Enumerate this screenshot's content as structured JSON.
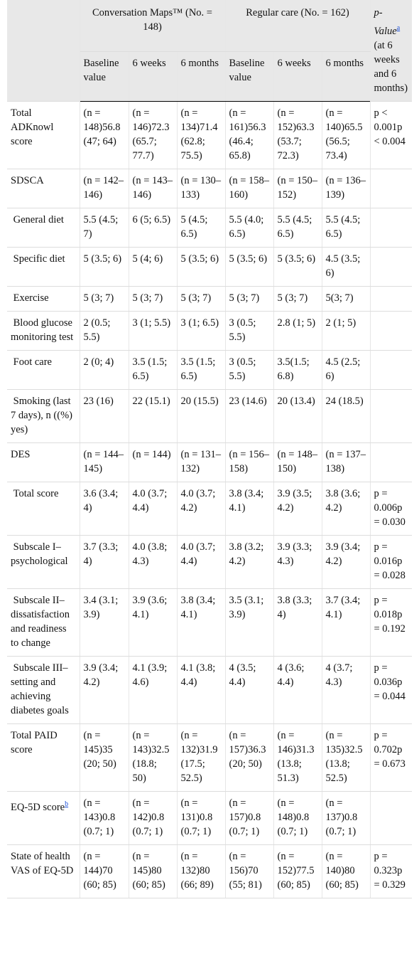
{
  "table": {
    "header": {
      "group_1": "Conversation Maps™ (No. = 148)",
      "group_2": "Regular care (No. = 162)",
      "p_col": {
        "text": "p-Value",
        "sup": "a",
        "rest": " (at 6 weeks and 6 months)"
      },
      "sub": [
        "Baseline value",
        "6 weeks",
        "6 months",
        "Baseline value",
        "6 weeks",
        "6 months"
      ]
    },
    "rows": [
      {
        "label": "Total ADKnowl score",
        "cells": [
          "(n = 148)56.8 (47; 64)",
          "(n = 146)72.3 (65.7; 77.7)",
          "(n = 134)71.4 (62.8; 75.5)",
          "(n = 161)56.3 (46.4; 65.8)",
          "(n = 152)63.3 (53.7; 72.3)",
          "(n = 140)65.5 (56.5; 73.4)"
        ],
        "p": "p < 0.001p < 0.004"
      },
      {
        "label": "SDSCA",
        "cells": [
          "(n = 142–146)",
          "(n = 143–146)",
          "(n = 130–133)",
          "(n = 158–160)",
          "(n = 150–152)",
          "(n = 136–139)"
        ]
      },
      {
        "label": " General diet",
        "cells": [
          "5.5 (4.5; 7)",
          "6 (5; 6.5)",
          "5 (4.5; 6.5)",
          "5.5 (4.0; 6.5)",
          "5.5 (4.5; 6.5)",
          "5.5 (4.5; 6.5)"
        ]
      },
      {
        "label": " Specific diet",
        "cells": [
          "5 (3.5; 6)",
          "5 (4; 6)",
          "5 (3.5; 6)",
          "5 (3.5; 6)",
          "5 (3.5; 6)",
          "4.5 (3.5; 6)"
        ]
      },
      {
        "label": " Exercise",
        "cells": [
          "5 (3; 7)",
          "5 (3; 7)",
          "5 (3; 7)",
          "5 (3; 7)",
          "5 (3; 7)",
          "5(3; 7)"
        ]
      },
      {
        "label": " Blood glucose monitoring test",
        "cells": [
          "2 (0.5; 5.5)",
          "3 (1; 5.5)",
          "3 (1; 6.5)",
          "3 (0.5; 5.5)",
          "2.8 (1; 5)",
          "2 (1; 5)"
        ]
      },
      {
        "label": " Foot care",
        "cells": [
          "2 (0; 4)",
          "3.5 (1.5; 6.5)",
          "3.5 (1.5; 6.5)",
          "3 (0.5; 5.5)",
          "3.5(1.5; 6.8)",
          "4.5 (2.5; 6)"
        ]
      },
      {
        "label": " Smoking (last 7 days), n ((%) yes)",
        "cells": [
          "23 (16)",
          "22 (15.1)",
          "20 (15.5)",
          "23 (14.6)",
          "20 (13.4)",
          "24 (18.5)"
        ]
      },
      {
        "label": "DES",
        "cells": [
          "(n = 144–145)",
          "(n = 144)",
          "(n = 131–132)",
          "(n = 156–158)",
          "(n = 148–150)",
          "(n = 137–138)"
        ]
      },
      {
        "label": " Total score",
        "cells": [
          "3.6 (3.4; 4)",
          "4.0 (3.7; 4.4)",
          "4.0 (3.7; 4.2)",
          "3.8 (3.4; 4.1)",
          "3.9 (3.5; 4.2)",
          "3.8 (3.6; 4.2)"
        ],
        "p": "p = 0.006p = 0.030"
      },
      {
        "label": " Subscale I–psychological",
        "cells": [
          "3.7 (3.3; 4)",
          "4.0 (3.8; 4.3)",
          "4.0 (3.7; 4.4)",
          "3.8 (3.2; 4.2)",
          "3.9 (3.3; 4.3)",
          "3.9 (3.4; 4.2)"
        ],
        "p": "p = 0.016p = 0.028"
      },
      {
        "label": " Subscale II–dissatisfaction and readiness to change",
        "cells": [
          "3.4 (3.1; 3.9)",
          "3.9 (3.6; 4.1)",
          "3.8 (3.4; 4.1)",
          "3.5 (3.1; 3.9)",
          "3.8 (3.3; 4)",
          "3.7 (3.4; 4.1)"
        ],
        "p": "p = 0.018p = 0.192"
      },
      {
        "label": " Subscale III–setting and achieving diabetes goals",
        "cells": [
          "3.9 (3.4; 4.2)",
          "4.1 (3.9; 4.6)",
          "4.1 (3.8; 4.4)",
          "4 (3.5; 4.4)",
          "4 (3.6; 4.4)",
          "4 (3.7; 4.3)"
        ],
        "p": "p = 0.036p = 0.044"
      },
      {
        "label": "Total PAID score",
        "cells": [
          "(n = 145)35 (20; 50)",
          "(n = 143)32.5 (18.8; 50)",
          "(n = 132)31.9 (17.5; 52.5)",
          "(n = 157)36.3 (20; 50)",
          "(n = 146)31.3 (13.8; 51.3)",
          "(n = 135)32.5 (13.8; 52.5)"
        ],
        "p": "p = 0.702p = 0.673"
      },
      {
        "label": "EQ-5D score",
        "label_sup": "b",
        "cells": [
          "(n = 143)0.8 (0.7; 1)",
          "(n = 142)0.8 (0.7; 1)",
          "(n = 131)0.8 (0.7; 1)",
          "(n = 157)0.8 (0.7; 1)",
          "(n = 148)0.8 (0.7; 1)",
          "(n = 137)0.8 (0.7; 1)"
        ]
      },
      {
        "label": "State of health VAS of EQ-5D",
        "cells": [
          "(n = 144)70 (60; 85)",
          "(n = 145)80 (60; 85)",
          "(n = 132)80 (66; 89)",
          "(n = 156)70 (55; 81)",
          "(n = 152)77.5 (60; 85)",
          "(n = 140)80 (60; 85)"
        ],
        "p": "p = 0.323p = 0.329"
      }
    ]
  }
}
